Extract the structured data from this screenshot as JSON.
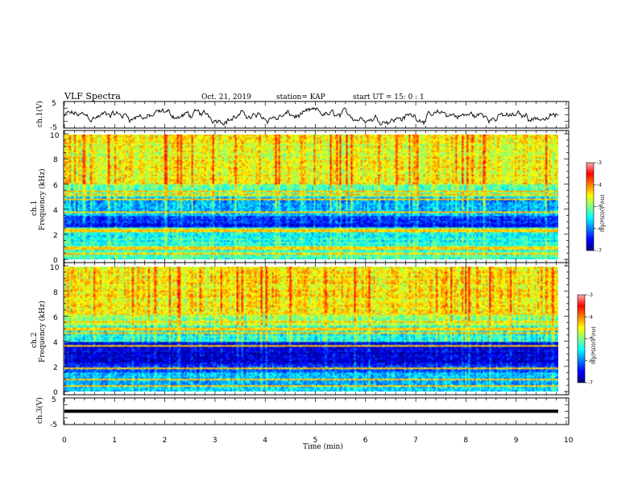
{
  "header": {
    "title": "VLF Spectra",
    "date": "Oct. 21, 2019",
    "station": "station= KAP",
    "start": "start  UT =   15: 0  : 1"
  },
  "colors": {
    "trace": "#000000",
    "scale": [
      "#00007f",
      "#0000ff",
      "#007fff",
      "#00ffff",
      "#7fff7f",
      "#ffff00",
      "#ff7f00",
      "#ff0000",
      "#ffb0b0"
    ]
  },
  "chart_data": [
    {
      "type": "line",
      "name": "ch1-waveform",
      "ylabel": "ch.1(V)",
      "ylim": [
        -5,
        5
      ],
      "yticks": [
        "5",
        "-5"
      ],
      "description_values": "noise-like trace, amplitude roughly -3..2 V"
    },
    {
      "type": "heatmap",
      "name": "ch1-spectrogram",
      "ylabel_top": "ch.1",
      "ylabel": "Frequency (kHz)",
      "ylim": [
        0,
        10
      ],
      "yticks": [
        "0",
        "2",
        "4",
        "6",
        "8",
        "10"
      ],
      "x_range_min": [
        0,
        9.83
      ],
      "bands": [
        {
          "f0": 0,
          "f1": 1.2,
          "level": -5.0
        },
        {
          "f0": 1.2,
          "f1": 2.6,
          "level": -5.2
        },
        {
          "f0": 2.6,
          "f1": 3.4,
          "level": -6.3
        },
        {
          "f0": 3.4,
          "f1": 5.0,
          "level": -5.6
        },
        {
          "f0": 5.0,
          "f1": 6.0,
          "level": -4.9
        },
        {
          "f0": 6.0,
          "f1": 10,
          "level": -4.2
        }
      ],
      "lines_khz": [
        0.4,
        0.8,
        1.0,
        2.2,
        2.4,
        3.8,
        4.8,
        5.2,
        5.5
      ],
      "colorbar": {
        "ticks": [
          "-3",
          "-4",
          "-5",
          "-6",
          "-7"
        ],
        "label": "log(PSD)(V²/Hz)",
        "range": [
          -7,
          -3
        ]
      }
    },
    {
      "type": "heatmap",
      "name": "ch2-spectrogram",
      "ylabel_top": "ch.2",
      "ylabel": "Frequency (kHz)",
      "ylim": [
        0,
        10
      ],
      "yticks": [
        "0",
        "2",
        "4",
        "6",
        "8",
        "10"
      ],
      "x_range_min": [
        0,
        9.83
      ],
      "bands": [
        {
          "f0": 0,
          "f1": 1.6,
          "level": -5.6
        },
        {
          "f0": 1.6,
          "f1": 2.2,
          "level": -6.2
        },
        {
          "f0": 2.2,
          "f1": 4.0,
          "level": -6.6
        },
        {
          "f0": 4.0,
          "f1": 5.2,
          "level": -5.2
        },
        {
          "f0": 5.2,
          "f1": 6.2,
          "level": -4.7
        },
        {
          "f0": 6.2,
          "f1": 10,
          "level": -4.1
        }
      ],
      "lines_khz": [
        0.5,
        1.0,
        1.9,
        3.6,
        4.7,
        5.0,
        5.6,
        6.2
      ],
      "colorbar": {
        "ticks": [
          "-3",
          "-4",
          "-5",
          "-6",
          "-7"
        ],
        "label": "log(PSD)(V²/Hz)",
        "range": [
          -7,
          -3
        ]
      }
    },
    {
      "type": "line",
      "name": "ch3-waveform",
      "ylabel": "ch.3(V)",
      "ylim": [
        -5,
        5
      ],
      "yticks": [
        "5",
        "-5"
      ],
      "constant_value": 0,
      "xlabel": "Time (min)",
      "xlim": [
        0,
        10
      ],
      "xticks": [
        "0",
        "1",
        "2",
        "3",
        "4",
        "5",
        "6",
        "7",
        "8",
        "9",
        "10"
      ]
    }
  ]
}
